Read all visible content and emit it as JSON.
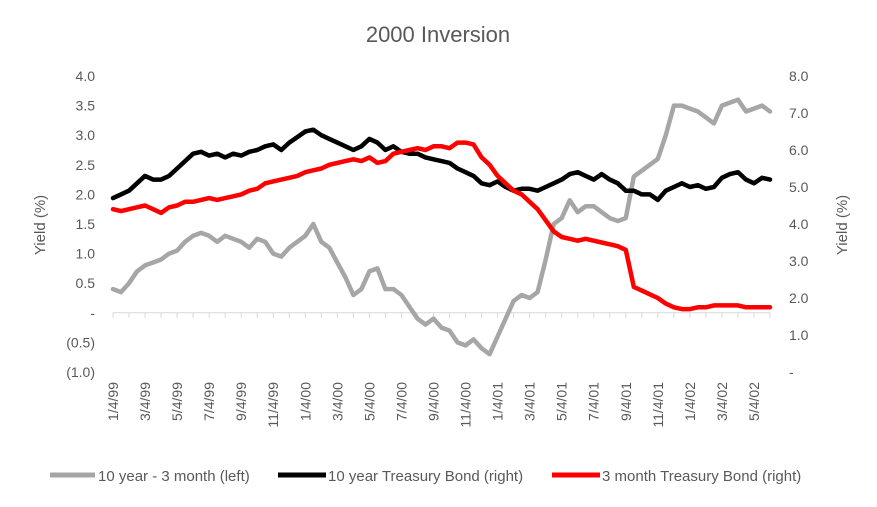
{
  "chart_data": {
    "type": "line",
    "title": "2000 Inversion",
    "ylabel_left": "Yield (%)",
    "ylabel_right": "Yield (%)",
    "ylim_left": [
      -1.0,
      4.0
    ],
    "ylim_right": [
      0.0,
      8.0
    ],
    "left_tick_labels": [
      "4.0",
      "3.5",
      "3.0",
      "2.5",
      "2.0",
      "1.5",
      "1.0",
      "0.5",
      "-",
      "(0.5)",
      "(1.0)"
    ],
    "left_tick_values": [
      4.0,
      3.5,
      3.0,
      2.5,
      2.0,
      1.5,
      1.0,
      0.5,
      0.0,
      -0.5,
      -1.0
    ],
    "right_tick_labels": [
      "8.0",
      "7.0",
      "6.0",
      "5.0",
      "4.0",
      "3.0",
      "2.0",
      "1.0",
      "-"
    ],
    "right_tick_values": [
      8.0,
      7.0,
      6.0,
      5.0,
      4.0,
      3.0,
      2.0,
      1.0,
      0.0
    ],
    "x_tick_labels": [
      "1/4/99",
      "3/4/99",
      "5/4/99",
      "7/4/99",
      "9/4/99",
      "11/4/99",
      "1/4/00",
      "3/4/00",
      "5/4/00",
      "7/4/00",
      "9/4/00",
      "11/4/00",
      "1/4/01",
      "3/4/01",
      "5/4/01",
      "7/4/01",
      "9/4/01",
      "11/4/01",
      "1/4/02",
      "3/4/02",
      "5/4/02"
    ],
    "x_months_range": [
      0,
      41
    ],
    "legend_position": "bottom",
    "grid": false,
    "series": [
      {
        "name": "10 year - 3 month (left)",
        "axis": "left",
        "color": "#a6a6a6",
        "points": [
          [
            0,
            0.4
          ],
          [
            0.5,
            0.35
          ],
          [
            1,
            0.5
          ],
          [
            1.5,
            0.7
          ],
          [
            2,
            0.8
          ],
          [
            2.5,
            0.85
          ],
          [
            3,
            0.9
          ],
          [
            3.5,
            1.0
          ],
          [
            4,
            1.05
          ],
          [
            4.5,
            1.2
          ],
          [
            5,
            1.3
          ],
          [
            5.5,
            1.35
          ],
          [
            6,
            1.3
          ],
          [
            6.5,
            1.2
          ],
          [
            7,
            1.3
          ],
          [
            7.5,
            1.25
          ],
          [
            8,
            1.2
          ],
          [
            8.5,
            1.1
          ],
          [
            9,
            1.25
          ],
          [
            9.5,
            1.2
          ],
          [
            10,
            1.0
          ],
          [
            10.5,
            0.95
          ],
          [
            11,
            1.1
          ],
          [
            11.5,
            1.2
          ],
          [
            12,
            1.3
          ],
          [
            12.5,
            1.5
          ],
          [
            13,
            1.2
          ],
          [
            13.5,
            1.1
          ],
          [
            14,
            0.85
          ],
          [
            14.5,
            0.6
          ],
          [
            15,
            0.3
          ],
          [
            15.5,
            0.4
          ],
          [
            16,
            0.7
          ],
          [
            16.5,
            0.75
          ],
          [
            17,
            0.4
          ],
          [
            17.5,
            0.4
          ],
          [
            18,
            0.3
          ],
          [
            18.5,
            0.1
          ],
          [
            19,
            -0.1
          ],
          [
            19.5,
            -0.2
          ],
          [
            20,
            -0.1
          ],
          [
            20.5,
            -0.25
          ],
          [
            21,
            -0.3
          ],
          [
            21.5,
            -0.5
          ],
          [
            22,
            -0.55
          ],
          [
            22.5,
            -0.45
          ],
          [
            23,
            -0.6
          ],
          [
            23.5,
            -0.7
          ],
          [
            24,
            -0.4
          ],
          [
            24.5,
            -0.1
          ],
          [
            25,
            0.2
          ],
          [
            25.5,
            0.3
          ],
          [
            26,
            0.25
          ],
          [
            26.5,
            0.35
          ],
          [
            27,
            0.9
          ],
          [
            27.5,
            1.5
          ],
          [
            28,
            1.6
          ],
          [
            28.5,
            1.9
          ],
          [
            29,
            1.7
          ],
          [
            29.5,
            1.8
          ],
          [
            30,
            1.8
          ],
          [
            30.5,
            1.7
          ],
          [
            31,
            1.6
          ],
          [
            31.5,
            1.55
          ],
          [
            32,
            1.6
          ],
          [
            32.5,
            2.3
          ],
          [
            33,
            2.4
          ],
          [
            33.5,
            2.5
          ],
          [
            34,
            2.6
          ],
          [
            34.5,
            3.0
          ],
          [
            35,
            3.5
          ],
          [
            35.5,
            3.5
          ],
          [
            36,
            3.45
          ],
          [
            36.5,
            3.4
          ],
          [
            37,
            3.3
          ],
          [
            37.5,
            3.2
          ],
          [
            38,
            3.5
          ],
          [
            38.5,
            3.55
          ],
          [
            39,
            3.6
          ],
          [
            39.5,
            3.4
          ],
          [
            40,
            3.45
          ],
          [
            40.5,
            3.5
          ],
          [
            41,
            3.4
          ]
        ]
      },
      {
        "name": "10 year Treasury Bond (right)",
        "axis": "right",
        "color": "#000000",
        "points": [
          [
            0,
            4.7
          ],
          [
            0.5,
            4.8
          ],
          [
            1,
            4.9
          ],
          [
            1.5,
            5.1
          ],
          [
            2,
            5.3
          ],
          [
            2.5,
            5.2
          ],
          [
            3,
            5.2
          ],
          [
            3.5,
            5.3
          ],
          [
            4,
            5.5
          ],
          [
            4.5,
            5.7
          ],
          [
            5,
            5.9
          ],
          [
            5.5,
            5.95
          ],
          [
            6,
            5.85
          ],
          [
            6.5,
            5.9
          ],
          [
            7,
            5.8
          ],
          [
            7.5,
            5.9
          ],
          [
            8,
            5.85
          ],
          [
            8.5,
            5.95
          ],
          [
            9,
            6.0
          ],
          [
            9.5,
            6.1
          ],
          [
            10,
            6.15
          ],
          [
            10.5,
            6.0
          ],
          [
            11,
            6.2
          ],
          [
            11.5,
            6.35
          ],
          [
            12,
            6.5
          ],
          [
            12.5,
            6.55
          ],
          [
            13,
            6.4
          ],
          [
            13.5,
            6.3
          ],
          [
            14,
            6.2
          ],
          [
            14.5,
            6.1
          ],
          [
            15,
            6.0
          ],
          [
            15.5,
            6.1
          ],
          [
            16,
            6.3
          ],
          [
            16.5,
            6.2
          ],
          [
            17,
            6.0
          ],
          [
            17.5,
            6.1
          ],
          [
            18,
            5.95
          ],
          [
            18.5,
            5.9
          ],
          [
            19,
            5.9
          ],
          [
            19.5,
            5.8
          ],
          [
            20,
            5.75
          ],
          [
            20.5,
            5.7
          ],
          [
            21,
            5.65
          ],
          [
            21.5,
            5.5
          ],
          [
            22,
            5.4
          ],
          [
            22.5,
            5.3
          ],
          [
            23,
            5.1
          ],
          [
            23.5,
            5.05
          ],
          [
            24,
            5.15
          ],
          [
            24.5,
            5.0
          ],
          [
            25,
            4.9
          ],
          [
            25.5,
            4.95
          ],
          [
            26,
            4.95
          ],
          [
            26.5,
            4.9
          ],
          [
            27,
            5.0
          ],
          [
            27.5,
            5.1
          ],
          [
            28,
            5.2
          ],
          [
            28.5,
            5.35
          ],
          [
            29,
            5.4
          ],
          [
            29.5,
            5.3
          ],
          [
            30,
            5.2
          ],
          [
            30.5,
            5.35
          ],
          [
            31,
            5.2
          ],
          [
            31.5,
            5.1
          ],
          [
            32,
            4.9
          ],
          [
            32.5,
            4.9
          ],
          [
            33,
            4.8
          ],
          [
            33.5,
            4.8
          ],
          [
            34,
            4.65
          ],
          [
            34.5,
            4.9
          ],
          [
            35,
            5.0
          ],
          [
            35.5,
            5.1
          ],
          [
            36,
            5.0
          ],
          [
            36.5,
            5.05
          ],
          [
            37,
            4.95
          ],
          [
            37.5,
            5.0
          ],
          [
            38,
            5.25
          ],
          [
            38.5,
            5.35
          ],
          [
            39,
            5.4
          ],
          [
            39.5,
            5.2
          ],
          [
            40,
            5.1
          ],
          [
            40.5,
            5.25
          ],
          [
            41,
            5.2
          ]
        ]
      },
      {
        "name": "3 month Treasury Bond (right)",
        "axis": "right",
        "color": "#ff0000",
        "points": [
          [
            0,
            4.4
          ],
          [
            0.5,
            4.35
          ],
          [
            1,
            4.4
          ],
          [
            1.5,
            4.45
          ],
          [
            2,
            4.5
          ],
          [
            2.5,
            4.4
          ],
          [
            3,
            4.3
          ],
          [
            3.5,
            4.45
          ],
          [
            4,
            4.5
          ],
          [
            4.5,
            4.6
          ],
          [
            5,
            4.6
          ],
          [
            5.5,
            4.65
          ],
          [
            6,
            4.7
          ],
          [
            6.5,
            4.65
          ],
          [
            7,
            4.7
          ],
          [
            7.5,
            4.75
          ],
          [
            8,
            4.8
          ],
          [
            8.5,
            4.9
          ],
          [
            9,
            4.95
          ],
          [
            9.5,
            5.1
          ],
          [
            10,
            5.15
          ],
          [
            10.5,
            5.2
          ],
          [
            11,
            5.25
          ],
          [
            11.5,
            5.3
          ],
          [
            12,
            5.4
          ],
          [
            12.5,
            5.45
          ],
          [
            13,
            5.5
          ],
          [
            13.5,
            5.6
          ],
          [
            14,
            5.65
          ],
          [
            14.5,
            5.7
          ],
          [
            15,
            5.75
          ],
          [
            15.5,
            5.7
          ],
          [
            16,
            5.8
          ],
          [
            16.5,
            5.65
          ],
          [
            17,
            5.7
          ],
          [
            17.5,
            5.9
          ],
          [
            18,
            5.95
          ],
          [
            18.5,
            6.0
          ],
          [
            19,
            6.05
          ],
          [
            19.5,
            6.0
          ],
          [
            20,
            6.1
          ],
          [
            20.5,
            6.1
          ],
          [
            21,
            6.05
          ],
          [
            21.5,
            6.2
          ],
          [
            22,
            6.2
          ],
          [
            22.5,
            6.15
          ],
          [
            23,
            5.8
          ],
          [
            23.5,
            5.6
          ],
          [
            24,
            5.3
          ],
          [
            24.5,
            5.1
          ],
          [
            25,
            4.9
          ],
          [
            25.5,
            4.8
          ],
          [
            26,
            4.6
          ],
          [
            26.5,
            4.4
          ],
          [
            27,
            4.1
          ],
          [
            27.5,
            3.8
          ],
          [
            28,
            3.65
          ],
          [
            28.5,
            3.6
          ],
          [
            29,
            3.55
          ],
          [
            29.5,
            3.6
          ],
          [
            30,
            3.55
          ],
          [
            30.5,
            3.5
          ],
          [
            31,
            3.45
          ],
          [
            31.5,
            3.4
          ],
          [
            32,
            3.3
          ],
          [
            32.5,
            2.3
          ],
          [
            33,
            2.2
          ],
          [
            33.5,
            2.1
          ],
          [
            34,
            2.0
          ],
          [
            34.5,
            1.85
          ],
          [
            35,
            1.75
          ],
          [
            35.5,
            1.7
          ],
          [
            36,
            1.7
          ],
          [
            36.5,
            1.75
          ],
          [
            37,
            1.75
          ],
          [
            37.5,
            1.8
          ],
          [
            38,
            1.8
          ],
          [
            38.5,
            1.8
          ],
          [
            39,
            1.8
          ],
          [
            39.5,
            1.75
          ],
          [
            40,
            1.75
          ],
          [
            40.5,
            1.75
          ],
          [
            41,
            1.75
          ]
        ]
      }
    ]
  }
}
